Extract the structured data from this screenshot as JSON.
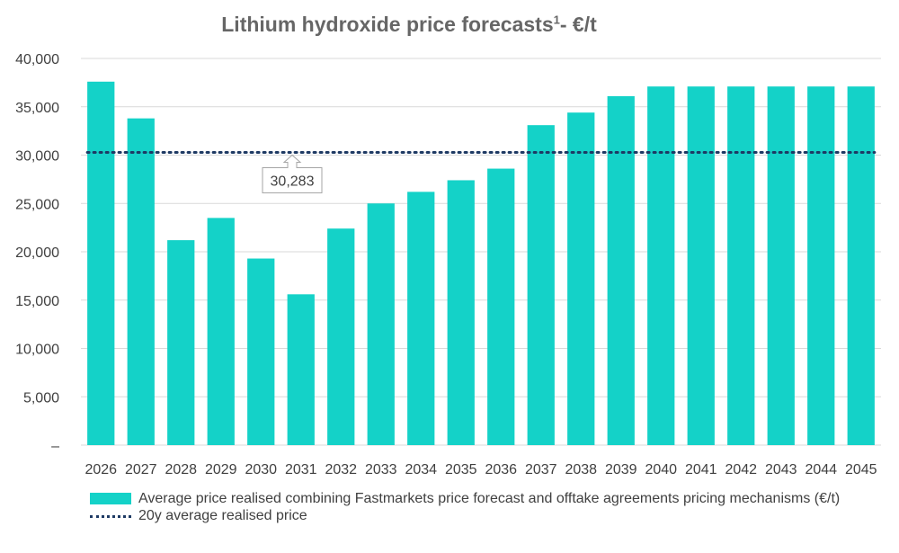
{
  "chart_data": {
    "type": "bar",
    "title": "Lithium hydroxide price forecasts",
    "title_superscript": "1",
    "title_suffix": "-  €/t",
    "categories": [
      "2026",
      "2027",
      "2028",
      "2029",
      "2030",
      "2031",
      "2032",
      "2033",
      "2034",
      "2035",
      "2036",
      "2037",
      "2038",
      "2039",
      "2040",
      "2041",
      "2042",
      "2043",
      "2044",
      "2045"
    ],
    "series": [
      {
        "name": "Average price realised combining Fastmarkets price forecast and offtake agreements pricing mechanisms (€/t)",
        "type": "bar",
        "color": "#14d2c8",
        "values": [
          37600,
          33800,
          21200,
          23500,
          19300,
          15600,
          22400,
          25000,
          26200,
          27400,
          28600,
          33100,
          34400,
          36100,
          37100,
          37100,
          37100,
          37100,
          37100,
          37100
        ]
      },
      {
        "name": "20y average realised price",
        "type": "line",
        "style": "dotted",
        "color": "#1e3a64",
        "value": 30283
      }
    ],
    "annotation": "30,283",
    "ylim": [
      0,
      40000
    ],
    "yticks": [
      0,
      5000,
      10000,
      15000,
      20000,
      25000,
      30000,
      35000,
      40000
    ],
    "ytick_labels": [
      "–",
      "5,000",
      "10,000",
      "15,000",
      "20,000",
      "25,000",
      "30,000",
      "35,000",
      "40,000"
    ],
    "grid": true,
    "legend_position": "bottom"
  }
}
